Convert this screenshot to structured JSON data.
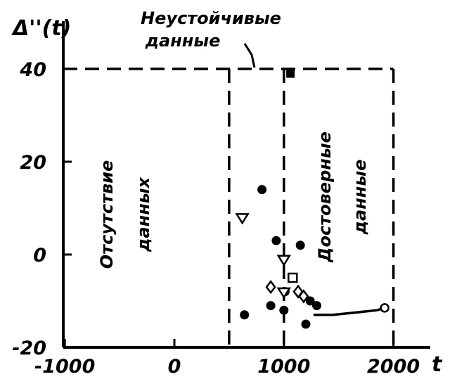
{
  "chart_data": {
    "type": "scatter",
    "title": "",
    "xlabel": "t",
    "ylabel": "Δ''(t)",
    "xlim": [
      -1050,
      2350
    ],
    "ylim": [
      -20,
      50
    ],
    "xticks": [
      -1000,
      0,
      1000,
      2000
    ],
    "xtick_labels": [
      "-1000",
      "0",
      "1000",
      "2000"
    ],
    "yticks": [
      -20,
      0,
      20,
      40
    ],
    "ytick_labels": [
      "-20",
      "0",
      "20",
      "40"
    ],
    "grid": false,
    "boundaries": {
      "upper_limit": 40,
      "vertical_lines": [
        500,
        1000,
        2000
      ]
    },
    "region_labels": {
      "absent": [
        "Отсутствие",
        "данных"
      ],
      "unstable": [
        "Неустойчивые",
        "данные"
      ],
      "reliable": [
        "Достоверные",
        "данные"
      ]
    },
    "series": [
      {
        "marker": "filled-circle",
        "x": [
          640,
          800,
          880,
          930,
          1000,
          1010,
          1150,
          1200,
          1240,
          1300
        ],
        "y": [
          -13,
          14,
          -11,
          3,
          -12,
          -8,
          2,
          -15,
          -10,
          -11
        ]
      },
      {
        "marker": "open-triangle-down",
        "x": [
          620,
          1000,
          1000
        ],
        "y": [
          8,
          -1,
          -8
        ]
      },
      {
        "marker": "open-diamond",
        "x": [
          880,
          1130,
          1180
        ],
        "y": [
          -7,
          -8,
          -9
        ]
      },
      {
        "marker": "open-square",
        "x": [
          1080
        ],
        "y": [
          -5
        ]
      },
      {
        "marker": "filled-square",
        "x": [
          1060
        ],
        "y": [
          39
        ]
      },
      {
        "marker": "open-circle",
        "x": [
          1920
        ],
        "y": [
          -11.5
        ]
      }
    ],
    "trend_curve": {
      "x": [
        1280,
        1450,
        1650,
        1850,
        1920
      ],
      "y": [
        -13,
        -13,
        -12.5,
        -12,
        -11.5
      ]
    }
  }
}
